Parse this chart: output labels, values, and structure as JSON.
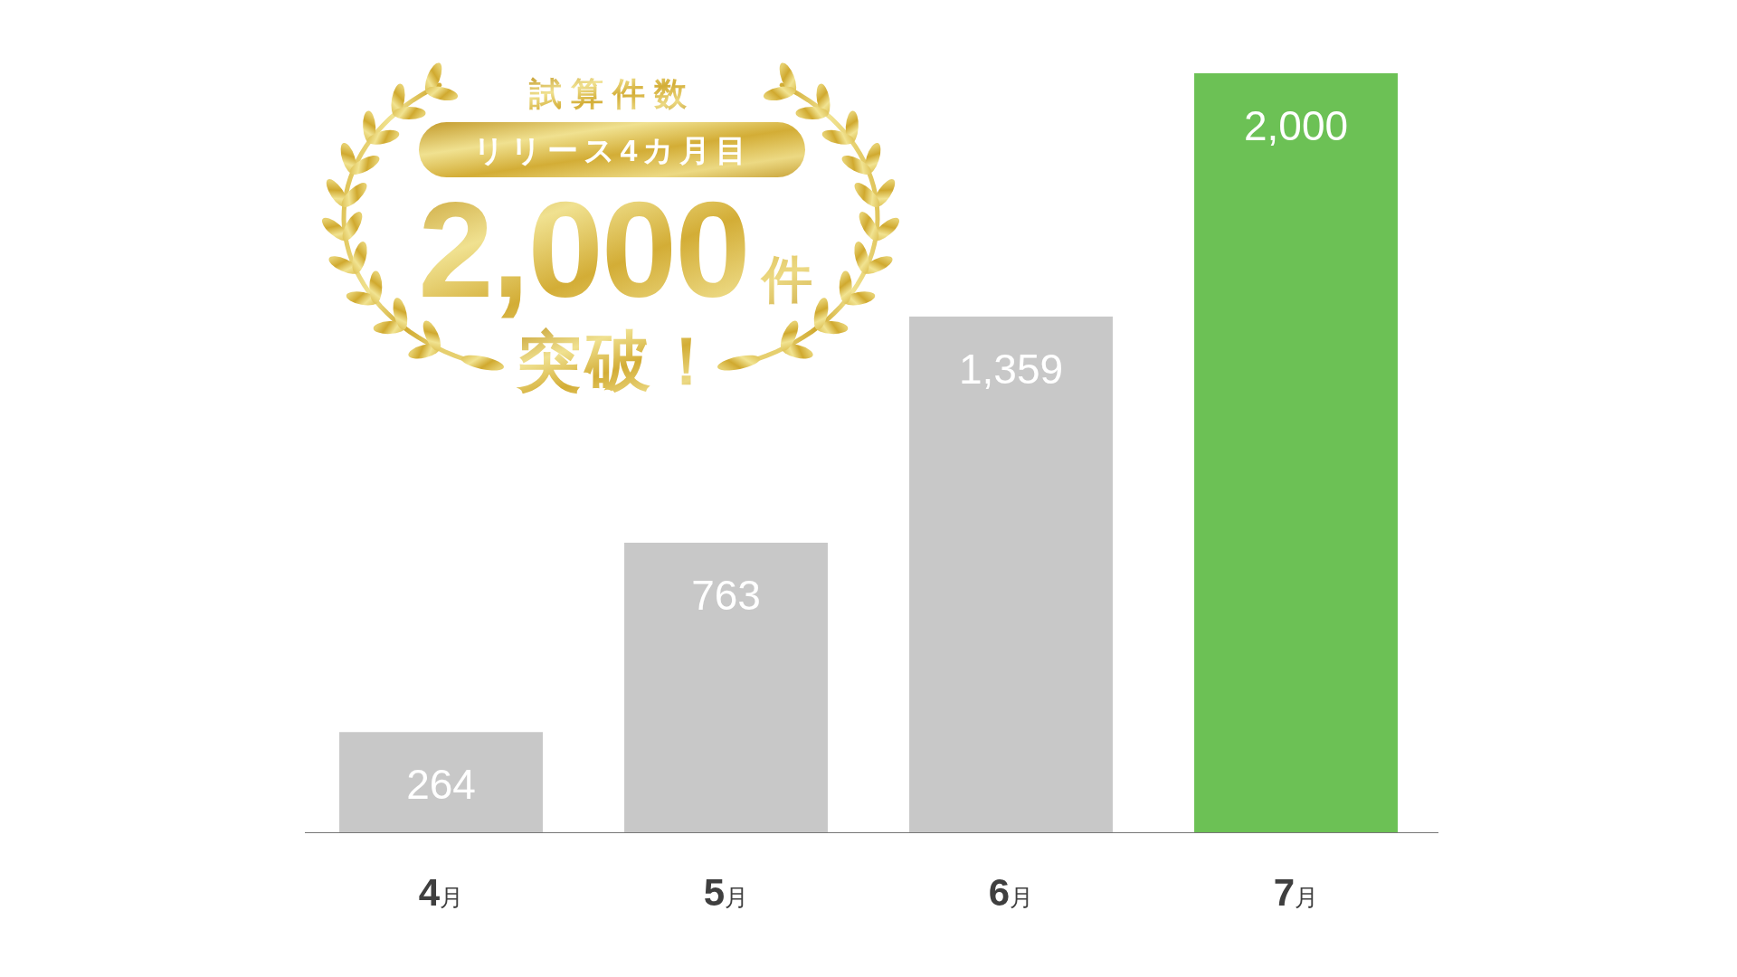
{
  "chart_data": {
    "type": "bar",
    "categories": [
      "4月",
      "5月",
      "6月",
      "7月"
    ],
    "values": [
      264,
      763,
      1359,
      2000
    ],
    "colors": [
      "#c8c8c8",
      "#c8c8c8",
      "#c8c8c8",
      "#6cc155"
    ],
    "value_labels": [
      "264",
      "763",
      "1,359",
      "2,000"
    ],
    "ylim": [
      0,
      2000
    ],
    "tick_labels": "x",
    "annotations": [
      "試算件数",
      "リリース4カ月目",
      "2,000件",
      "突破！"
    ]
  }
}
